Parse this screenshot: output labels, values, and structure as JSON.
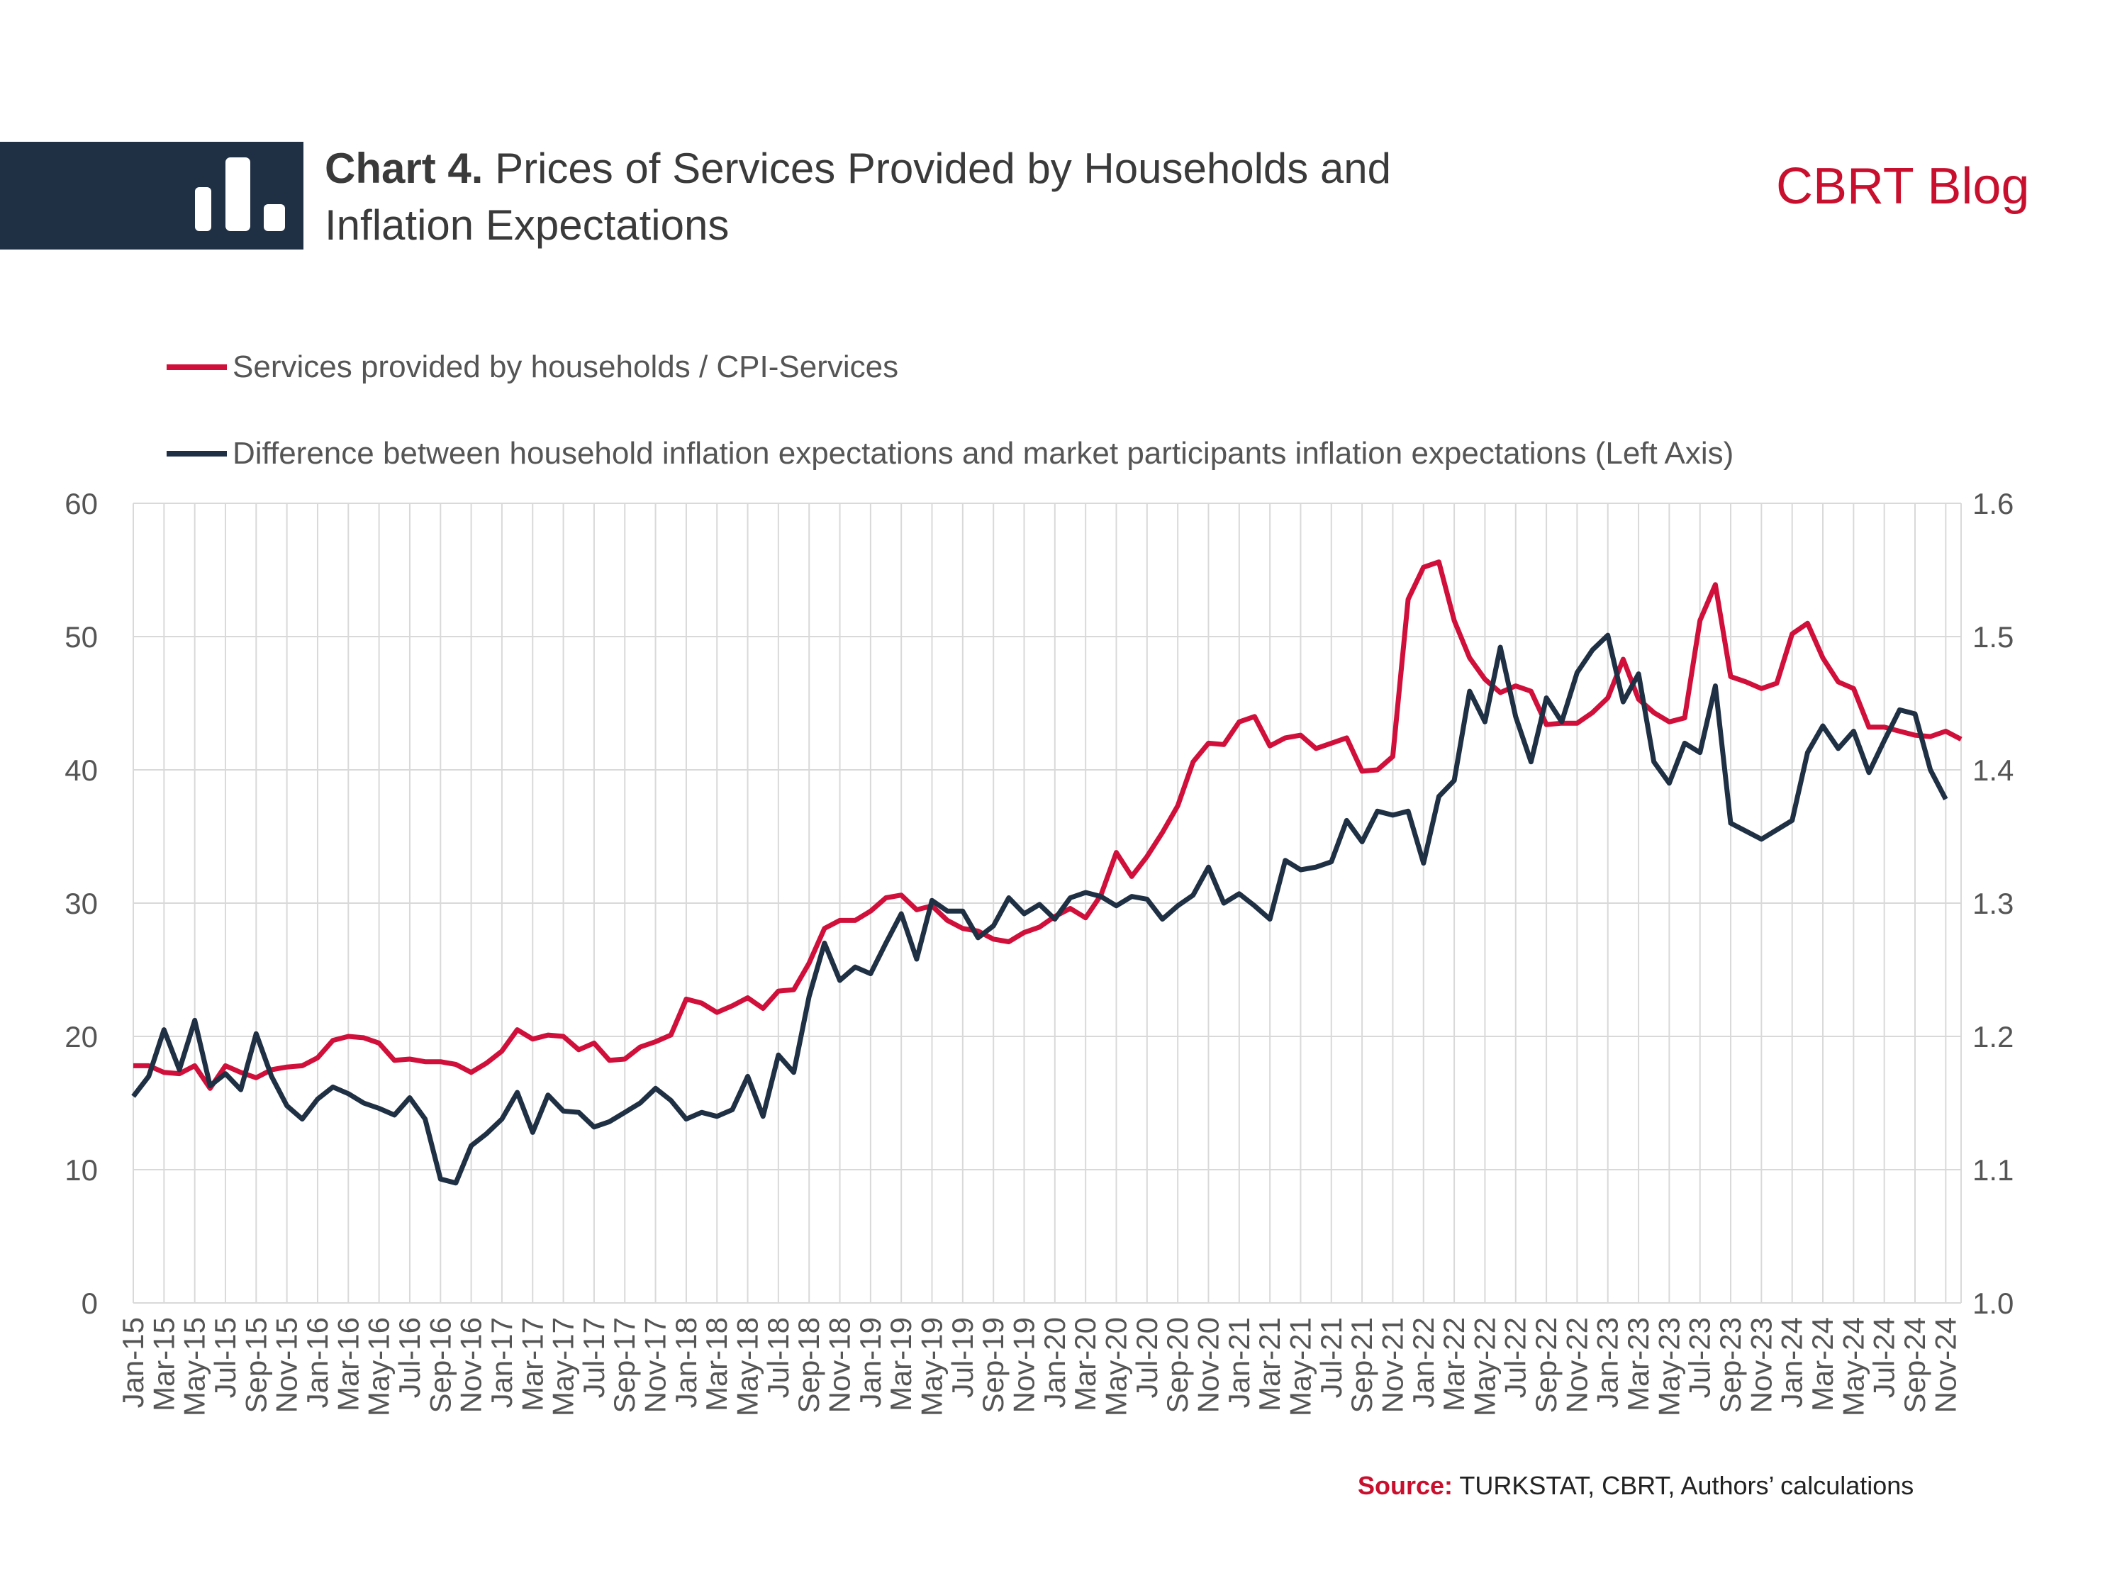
{
  "header": {
    "chart_label": "Chart 4.",
    "title_line1": "Prices of Services Provided by Households and",
    "title_line2": "Inflation Expectations",
    "brand": "CBRT Blog"
  },
  "source": {
    "label": "Source:",
    "text": "TURKSTAT, CBRT, Authors’ calculations"
  },
  "colors": {
    "households": "#d0103a",
    "difference": "#1f3044",
    "grid": "#d9d9d9",
    "header_bar": "#1f3044"
  },
  "icons": {
    "header": "bar-chart-icon"
  },
  "chart_data": {
    "type": "line",
    "legend_position": "top-left",
    "grid": true,
    "left_axis": {
      "ticks": [
        "0",
        "10",
        "20",
        "30",
        "40",
        "50",
        "60"
      ],
      "ylim": [
        0,
        60
      ]
    },
    "right_axis": {
      "ticks": [
        "1.0",
        "1.1",
        "1.2",
        "1.3",
        "1.4",
        "1.5",
        "1.6"
      ],
      "ylim": [
        1.0,
        1.6
      ]
    },
    "x_labels": [
      "Jan-15",
      "Mar-15",
      "May-15",
      "Jul-15",
      "Sep-15",
      "Nov-15",
      "Jan-16",
      "Mar-16",
      "May-16",
      "Jul-16",
      "Sep-16",
      "Nov-16",
      "Jan-17",
      "Mar-17",
      "May-17",
      "Jul-17",
      "Sep-17",
      "Nov-17",
      "Jan-18",
      "Mar-18",
      "May-18",
      "Jul-18",
      "Sep-18",
      "Nov-18",
      "Jan-19",
      "Mar-19",
      "May-19",
      "Jul-19",
      "Sep-19",
      "Nov-19",
      "Jan-20",
      "Mar-20",
      "May-20",
      "Jul-20",
      "Sep-20",
      "Nov-20",
      "Jan-21",
      "Mar-21",
      "May-21",
      "Jul-21",
      "Sep-21",
      "Nov-21",
      "Jan-22",
      "Mar-22",
      "May-22",
      "Jul-22",
      "Sep-22",
      "Nov-22",
      "Jan-23",
      "Mar-23",
      "May-23",
      "Jul-23",
      "Sep-23",
      "Nov-23",
      "Jan-24",
      "Mar-24",
      "May-24",
      "Jul-24",
      "Sep-24",
      "Nov-24"
    ],
    "series": [
      {
        "name": "Services provided by households / CPI-Services",
        "axis": "right",
        "values": [
          1.178,
          1.178,
          1.173,
          1.172,
          1.178,
          1.161,
          1.178,
          1.173,
          1.169,
          1.175,
          1.177,
          1.178,
          1.184,
          1.197,
          1.2,
          1.199,
          1.195,
          1.182,
          1.183,
          1.181,
          1.181,
          1.179,
          1.173,
          1.18,
          1.189,
          1.205,
          1.198,
          1.201,
          1.2,
          1.19,
          1.195,
          1.182,
          1.183,
          1.192,
          1.196,
          1.201,
          1.228,
          1.225,
          1.218,
          1.223,
          1.229,
          1.221,
          1.234,
          1.235,
          1.255,
          1.281,
          1.287,
          1.287,
          1.294,
          1.304,
          1.306,
          1.295,
          1.298,
          1.287,
          1.281,
          1.279,
          1.273,
          1.271,
          1.278,
          1.282,
          1.29,
          1.296,
          1.289,
          1.306,
          1.338,
          1.32,
          1.335,
          1.353,
          1.373,
          1.406,
          1.42,
          1.419,
          1.436,
          1.44,
          1.418,
          1.424,
          1.426,
          1.416,
          1.42,
          1.424,
          1.399,
          1.4,
          1.41,
          1.528,
          1.552,
          1.556,
          1.512,
          1.484,
          1.468,
          1.458,
          1.463,
          1.459,
          1.434,
          1.435,
          1.435,
          1.443,
          1.454,
          1.483,
          1.453,
          1.443,
          1.436,
          1.439,
          1.512,
          1.539,
          1.47,
          1.466,
          1.461,
          1.465,
          1.502,
          1.51,
          1.484,
          1.466,
          1.461,
          1.432,
          1.432,
          1.429,
          1.426,
          1.425,
          1.429,
          1.423
        ]
      },
      {
        "name": "Difference between household inflation expectations and market participants inflation expectations (Left Axis)",
        "axis": "left",
        "values": [
          15.5,
          17.0,
          20.5,
          17.5,
          21.2,
          16.3,
          17.2,
          16.0,
          20.2,
          17.0,
          14.8,
          13.8,
          15.3,
          16.2,
          15.7,
          15.0,
          14.6,
          14.1,
          15.4,
          13.8,
          9.3,
          9.0,
          11.8,
          12.7,
          13.8,
          15.8,
          12.8,
          15.6,
          14.4,
          14.3,
          13.2,
          13.6,
          14.3,
          15.0,
          16.1,
          15.2,
          13.8,
          14.3,
          14.0,
          14.5,
          17.0,
          14.0,
          18.6,
          17.3,
          23.0,
          27.0,
          24.2,
          25.2,
          24.7,
          27.0,
          29.2,
          25.8,
          30.2,
          29.4,
          29.4,
          27.4,
          28.3,
          30.4,
          29.2,
          29.9,
          28.8,
          30.4,
          30.8,
          30.5,
          29.8,
          30.5,
          30.3,
          28.8,
          29.8,
          30.6,
          32.7,
          30.0,
          30.7,
          29.8,
          28.8,
          33.2,
          32.5,
          32.7,
          33.1,
          36.2,
          34.6,
          36.9,
          36.6,
          36.9,
          33.0,
          38.0,
          39.2,
          45.9,
          43.6,
          49.2,
          44.0,
          40.6,
          45.4,
          43.6,
          47.3,
          49.0,
          50.1,
          45.1,
          47.2,
          40.6,
          39.0,
          42.0,
          41.3,
          46.3,
          36.0,
          35.4,
          34.8,
          35.5,
          36.2,
          41.3,
          43.3,
          41.6,
          42.9,
          39.8,
          42.2,
          44.5,
          44.2,
          40.0,
          37.8
        ]
      }
    ]
  }
}
